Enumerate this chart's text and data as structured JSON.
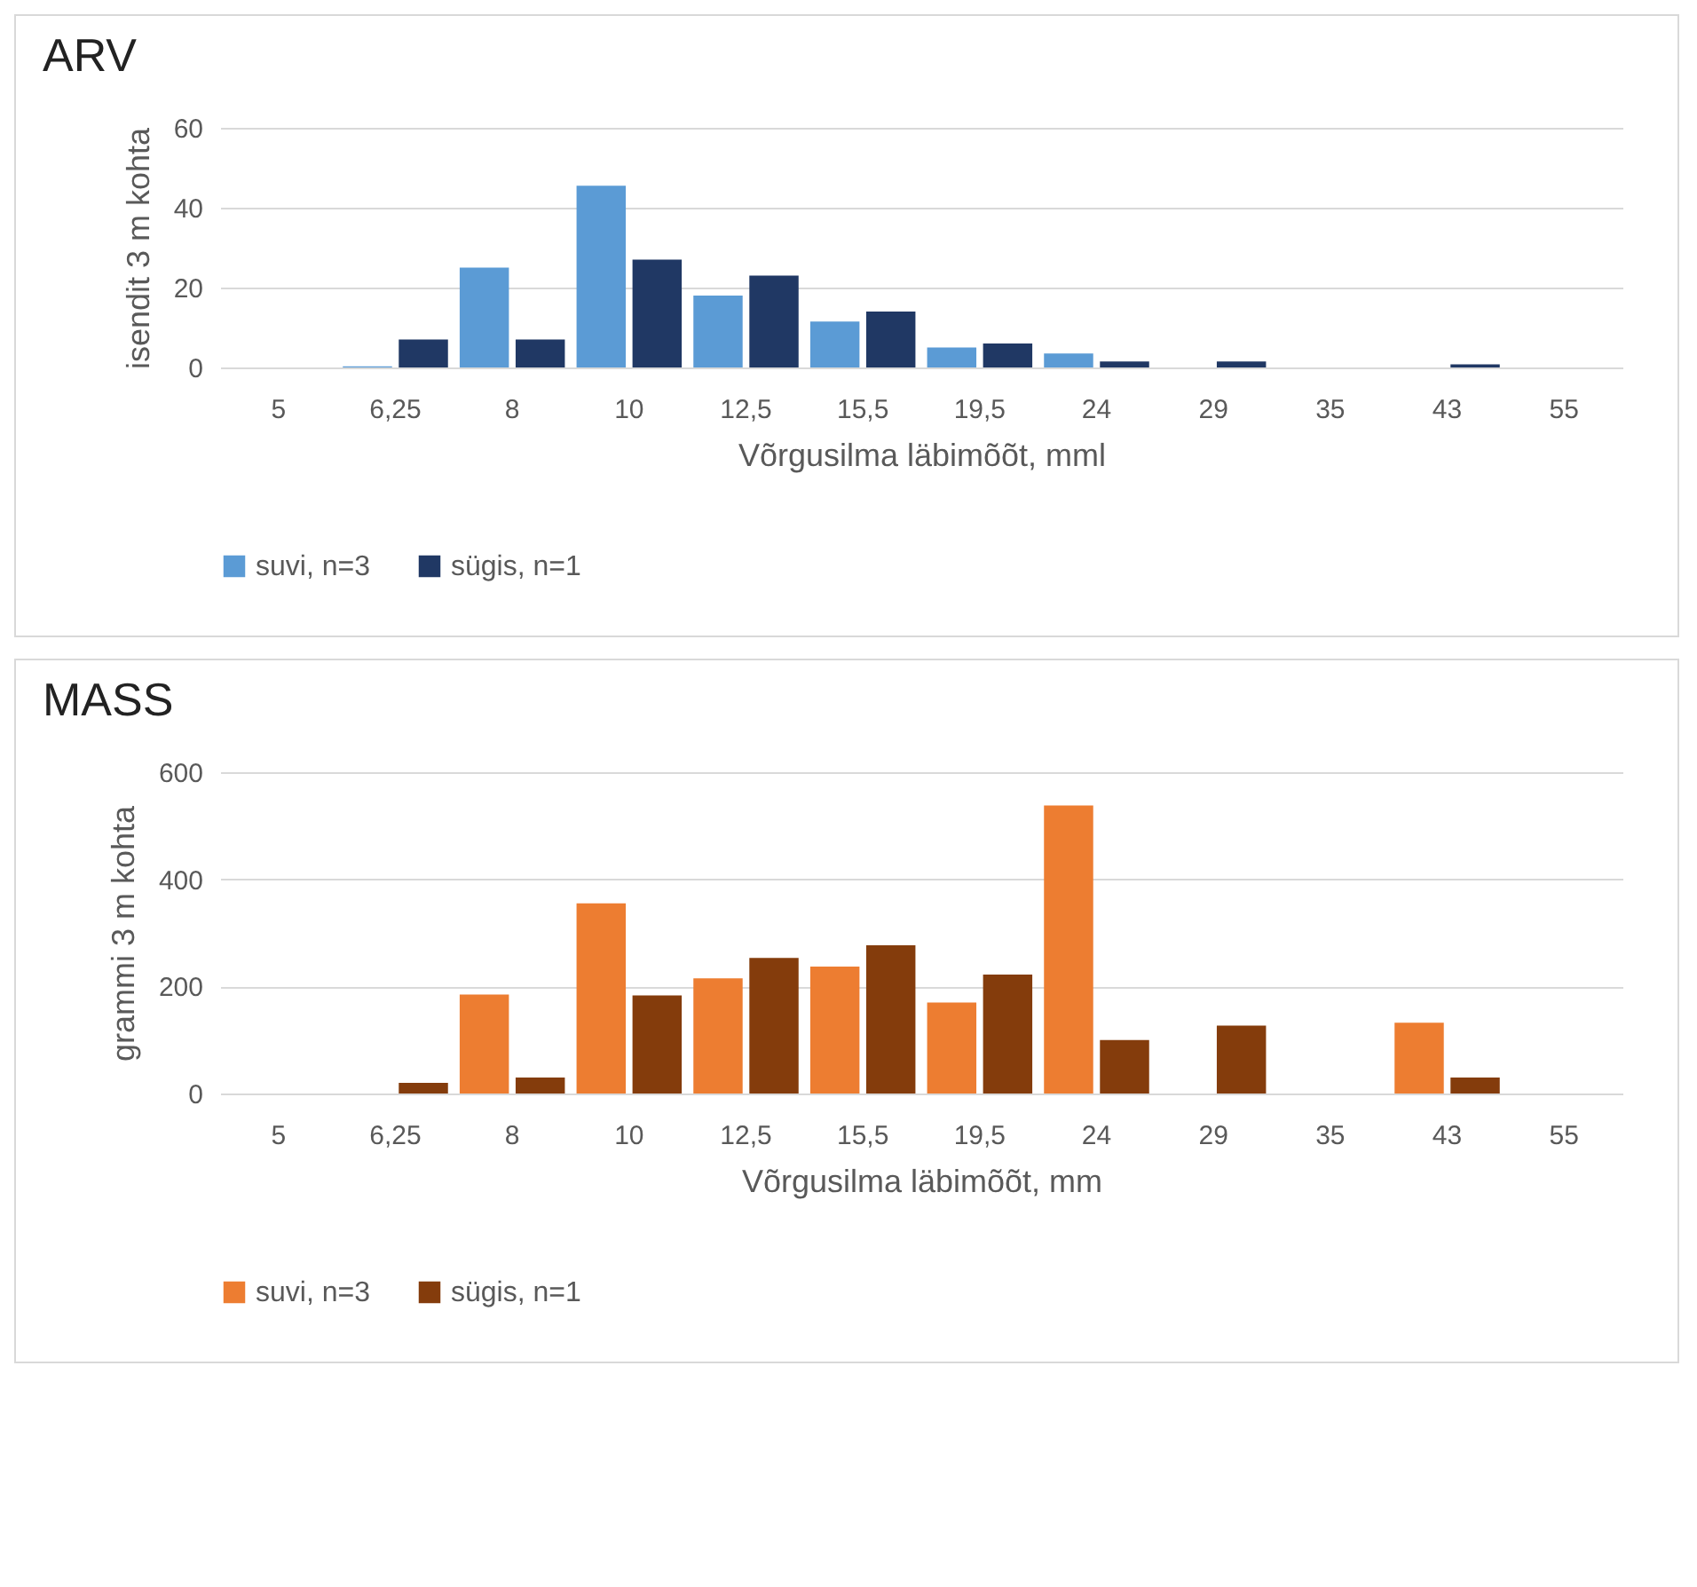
{
  "chart_data": [
    {
      "type": "bar",
      "title": "ARV",
      "xlabel": "Võrgusilma läbimõõt, mml",
      "ylabel": "isendit 3 m kohta",
      "categories": [
        "5",
        "6,25",
        "8",
        "10",
        "12,5",
        "15,5",
        "19,5",
        "24",
        "29",
        "35",
        "43",
        "55"
      ],
      "series": [
        {
          "name": "suvi, n=3",
          "color": "#5b9bd5",
          "values": [
            0,
            0.3,
            25,
            45.5,
            18,
            11.5,
            5,
            3.5,
            0,
            0,
            0,
            0
          ]
        },
        {
          "name": "sügis, n=1",
          "color": "#203864",
          "values": [
            0,
            7,
            7,
            27,
            23,
            14,
            6,
            1.5,
            1.5,
            0,
            0.8,
            0
          ]
        }
      ],
      "ylim": [
        0,
        60
      ],
      "yticks": [
        0,
        20,
        40,
        60
      ],
      "grid": "y",
      "legend": "bottom"
    },
    {
      "type": "bar",
      "title": "MASS",
      "xlabel": "Võrgusilma läbimõõt, mm",
      "ylabel": "grammi 3 m kohta",
      "categories": [
        "5",
        "6,25",
        "8",
        "10",
        "12,5",
        "15,5",
        "19,5",
        "24",
        "29",
        "35",
        "43",
        "55"
      ],
      "series": [
        {
          "name": "suvi, n=3",
          "color": "#ed7d31",
          "values": [
            0,
            0,
            185,
            355,
            215,
            237,
            170,
            538,
            0,
            0,
            132,
            0
          ]
        },
        {
          "name": "sügis, n=1",
          "color": "#843c0c",
          "values": [
            0,
            20,
            30,
            183,
            253,
            277,
            222,
            100,
            127,
            0,
            30,
            0
          ]
        }
      ],
      "ylim": [
        0,
        600
      ],
      "yticks": [
        0,
        200,
        400,
        600
      ],
      "grid": "y",
      "legend": "bottom"
    }
  ]
}
